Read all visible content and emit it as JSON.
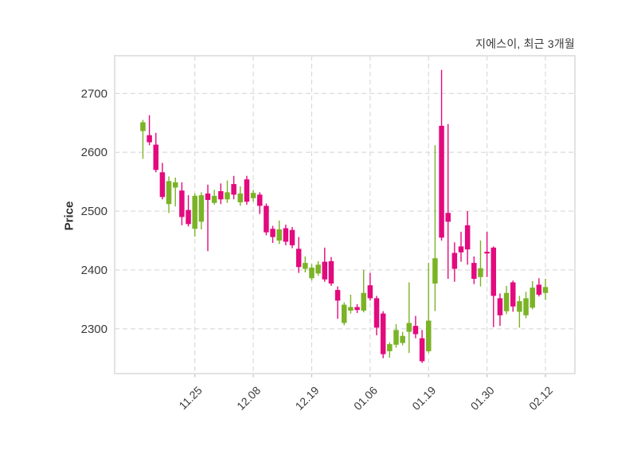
{
  "chart_data": {
    "type": "candlestick",
    "title": "지에스이, 최근 3개월",
    "ylabel": "Price",
    "xlabel": "",
    "grid": true,
    "legend": false,
    "y_ticks": [
      2300,
      2400,
      2500,
      2600,
      2700
    ],
    "ylim": [
      2224,
      2764
    ],
    "x_tick_labels": [
      "11.25",
      "12.08",
      "12.19",
      "01.06",
      "01.19",
      "01.30",
      "02.12"
    ],
    "x_tick_indices": [
      8,
      17,
      26,
      35,
      44,
      53,
      62
    ],
    "up_color": "#7bb327",
    "down_color": "#e3097e",
    "grid_color": "#d7d7d7",
    "spine_color": "#e2e2e2",
    "text_color": "#3a3a3a",
    "candle_format": [
      "open",
      "high",
      "low",
      "close"
    ],
    "candles": [
      [
        2636,
        2655,
        2589,
        2651
      ],
      [
        2629,
        2663,
        2612,
        2617
      ],
      [
        2613,
        2633,
        2566,
        2570
      ],
      [
        2566,
        2582,
        2520,
        2524
      ],
      [
        2512,
        2559,
        2497,
        2551
      ],
      [
        2540,
        2557,
        2508,
        2549
      ],
      [
        2535,
        2549,
        2476,
        2490
      ],
      [
        2502,
        2527,
        2474,
        2478
      ],
      [
        2470,
        2530,
        2457,
        2526
      ],
      [
        2482,
        2532,
        2469,
        2527
      ],
      [
        2530,
        2545,
        2432,
        2519
      ],
      [
        2514,
        2536,
        2511,
        2526
      ],
      [
        2534,
        2547,
        2512,
        2520
      ],
      [
        2520,
        2552,
        2514,
        2532
      ],
      [
        2546,
        2560,
        2520,
        2528
      ],
      [
        2515,
        2542,
        2509,
        2530
      ],
      [
        2554,
        2560,
        2511,
        2516
      ],
      [
        2522,
        2536,
        2516,
        2531
      ],
      [
        2528,
        2532,
        2495,
        2509
      ],
      [
        2509,
        2513,
        2459,
        2464
      ],
      [
        2470,
        2475,
        2446,
        2456
      ],
      [
        2450,
        2484,
        2444,
        2469
      ],
      [
        2471,
        2477,
        2442,
        2448
      ],
      [
        2468,
        2473,
        2437,
        2442
      ],
      [
        2436,
        2456,
        2395,
        2405
      ],
      [
        2402,
        2423,
        2396,
        2412
      ],
      [
        2386,
        2410,
        2382,
        2404
      ],
      [
        2394,
        2415,
        2390,
        2409
      ],
      [
        2414,
        2438,
        2380,
        2384
      ],
      [
        2415,
        2422,
        2373,
        2377
      ],
      [
        2366,
        2372,
        2317,
        2348
      ],
      [
        2310,
        2345,
        2306,
        2341
      ],
      [
        2331,
        2358,
        2326,
        2337
      ],
      [
        2337,
        2342,
        2327,
        2332
      ],
      [
        2331,
        2400,
        2328,
        2361
      ],
      [
        2374,
        2395,
        2348,
        2352
      ],
      [
        2352,
        2356,
        2289,
        2302
      ],
      [
        2326,
        2330,
        2250,
        2257
      ],
      [
        2262,
        2277,
        2251,
        2274
      ],
      [
        2273,
        2308,
        2268,
        2298
      ],
      [
        2276,
        2295,
        2272,
        2288
      ],
      [
        2295,
        2379,
        2259,
        2310
      ],
      [
        2305,
        2322,
        2284,
        2291
      ],
      [
        2284,
        2298,
        2242,
        2245
      ],
      [
        2262,
        2412,
        2259,
        2314
      ],
      [
        2377,
        2612,
        2330,
        2420
      ],
      [
        2645,
        2740,
        2450,
        2455
      ],
      [
        2497,
        2648,
        2385,
        2482
      ],
      [
        2429,
        2447,
        2380,
        2402
      ],
      [
        2440,
        2465,
        2414,
        2430
      ],
      [
        2476,
        2500,
        2409,
        2435
      ],
      [
        2412,
        2423,
        2376,
        2385
      ],
      [
        2388,
        2450,
        2372,
        2403
      ],
      [
        2431,
        2465,
        2388,
        2428
      ],
      [
        2438,
        2440,
        2303,
        2356
      ],
      [
        2352,
        2360,
        2305,
        2323
      ],
      [
        2330,
        2373,
        2325,
        2361
      ],
      [
        2379,
        2382,
        2329,
        2338
      ],
      [
        2329,
        2356,
        2302,
        2347
      ],
      [
        2323,
        2363,
        2318,
        2352
      ],
      [
        2336,
        2381,
        2333,
        2370
      ],
      [
        2375,
        2386,
        2355,
        2358
      ],
      [
        2361,
        2385,
        2349,
        2371
      ]
    ]
  }
}
